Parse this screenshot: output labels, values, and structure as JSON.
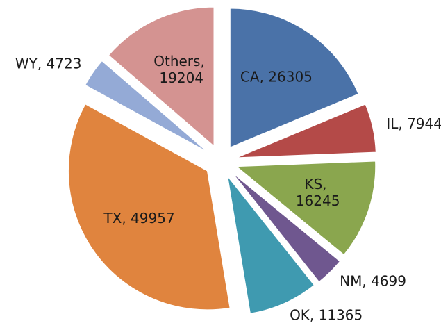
{
  "chart_data": {
    "type": "pie",
    "values": [
      26305,
      7944,
      16245,
      4699,
      11365,
      49957,
      4723,
      19204
    ],
    "value_labels": [
      "CA, 26305",
      "IL, 7944",
      "KS, 16245",
      "NM, 4699",
      "OK, 11365",
      "TX, 49957",
      "WY, 4723",
      "Others, 19204"
    ],
    "colors": [
      "#4a72a8",
      "#b44a48",
      "#8aa64e",
      "#6f578f",
      "#3f9ab0",
      "#e0843e",
      "#94aad6",
      "#d49391"
    ],
    "exploded": true
  }
}
